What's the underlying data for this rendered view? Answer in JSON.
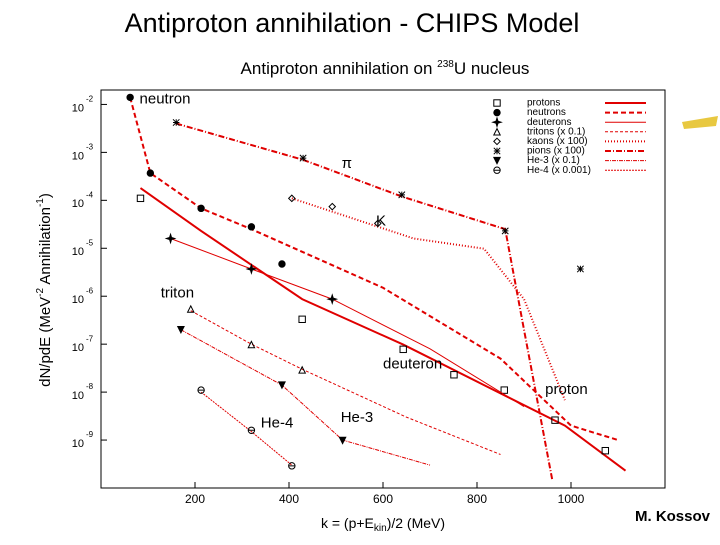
{
  "slide_title": "Antiproton annihilation - CHIPS Model",
  "author": "M. Kossov",
  "chart_data": {
    "type": "scatter",
    "title": {
      "prefix": "Antiproton annihilation on ",
      "isotope": "238",
      "suffix": "U nucleus"
    },
    "x_label": {
      "prefix": "k = (p+E",
      "sub": "kin",
      "suffix": ")/2 (MeV)"
    },
    "y_label": {
      "a": "dN/pdE (MeV",
      "e1": "-2",
      "b": " Annihilation",
      "e2": "-1",
      "c": ")"
    },
    "log_y": true,
    "xlim": [
      0,
      1200
    ],
    "xticks": [
      200,
      400,
      600,
      800,
      1000
    ],
    "ylim": [
      1e-10,
      0.02
    ],
    "yticks": [
      {
        "value": 0.01,
        "label": "10",
        "exponent": "-2"
      },
      {
        "value": 0.001,
        "label": "10",
        "exponent": "-3"
      },
      {
        "value": 0.0001,
        "label": "10",
        "exponent": "-4"
      },
      {
        "value": 1e-05,
        "label": "10",
        "exponent": "-5"
      },
      {
        "value": 1e-06,
        "label": "10",
        "exponent": "-6"
      },
      {
        "value": 1e-07,
        "label": "10",
        "exponent": "-7"
      },
      {
        "value": 1e-08,
        "label": "10",
        "exponent": "-8"
      },
      {
        "value": 1e-09,
        "label": "10",
        "exponent": "-9"
      }
    ],
    "legend": "upper-right",
    "model_color": "#e00000",
    "series": [
      {
        "name": "protons",
        "color": "#000000",
        "marker": "square",
        "x": [
          84,
          428,
          643,
          751,
          858,
          966,
          1073
        ],
        "values": [
          0.00011,
          3.3e-07,
          7.8e-08,
          2.3e-08,
          1.1e-08,
          2.6e-09,
          6e-10
        ],
        "model": {
          "dash": "none",
          "width": 2,
          "x": [
            84,
            213,
            428,
            643,
            815,
            987,
            1116
          ],
          "values": [
            0.00018,
            2.3e-05,
            8.7e-07,
            9.8e-08,
            1.4e-08,
            2e-09,
            2.3e-10
          ]
        }
      },
      {
        "name": "neutrons",
        "color": "#000000",
        "marker": "circle",
        "x": [
          62,
          105,
          213,
          320,
          385
        ],
        "values": [
          0.014,
          0.00037,
          6.8e-05,
          2.8e-05,
          4.7e-06
        ],
        "model": {
          "dash": "5,3",
          "width": 2,
          "x": [
            62,
            105,
            213,
            320,
            600,
            850,
            1000,
            1100
          ],
          "values": [
            0.014,
            0.00037,
            6.8e-05,
            2.5e-05,
            1.5e-06,
            5e-08,
            2e-09,
            1e-09
          ]
        }
      },
      {
        "name": "deuterons",
        "color": "#000000",
        "marker": "star",
        "x": [
          148,
          320,
          492
        ],
        "values": [
          1.6e-05,
          3.7e-06,
          8.7e-07
        ],
        "model": {
          "dash": "none",
          "width": 1,
          "x": [
            148,
            320,
            492,
            700,
            900
          ],
          "values": [
            1.6e-05,
            3.7e-06,
            8.7e-07,
            8e-08,
            5e-09
          ]
        }
      },
      {
        "name": "tritons (x 0.1)",
        "color": "#000000",
        "marker": "triangle",
        "x": [
          191,
          320,
          428
        ],
        "values": [
          5.4e-07,
          9.8e-08,
          2.9e-08
        ],
        "model": {
          "dash": "3,2",
          "width": 1,
          "x": [
            191,
            320,
            428,
            650,
            850
          ],
          "values": [
            5e-07,
            1e-07,
            3e-08,
            3e-09,
            5e-10
          ]
        }
      },
      {
        "name": "kaons (x 100)",
        "color": "#000000",
        "marker": "diamond",
        "x": [
          406,
          492,
          589
        ],
        "values": [
          0.00011,
          7.4e-05,
          3.3e-05
        ],
        "model": {
          "dash": "1,2",
          "width": 2,
          "x": [
            406,
            600,
            665,
            815,
            900,
            987
          ],
          "values": [
            0.00011,
            2.6e-05,
            1.6e-05,
            9.8e-06,
            8.7e-07,
            6.8e-09
          ]
        }
      },
      {
        "name": "pions (x 100)",
        "color": "#000000",
        "marker": "asterisk",
        "x": [
          160,
          430,
          640,
          860,
          1020
        ],
        "values": [
          0.0042,
          0.00076,
          0.00013,
          2.3e-05,
          3.7e-06
        ],
        "model": {
          "dash": "6,2,1,2",
          "width": 2,
          "x": [
            160,
            430,
            640,
            860,
            900,
            960
          ],
          "values": [
            0.004,
            0.0007,
            0.00012,
            2.5e-05,
            2e-07,
            1.5e-10
          ]
        }
      },
      {
        "name": "He-3 (x 0.1)",
        "color": "#000000",
        "marker": "triangle-down",
        "x": [
          170,
          385,
          514
        ],
        "values": [
          2e-07,
          1.4e-08,
          9.8e-10
        ],
        "model": {
          "dash": "4,1,1,1",
          "width": 1,
          "x": [
            170,
            385,
            514,
            700
          ],
          "values": [
            2e-07,
            1.4e-08,
            1e-09,
            3e-10
          ]
        }
      },
      {
        "name": "He-4 (x 0.001)",
        "color": "#000000",
        "marker": "circle-cross",
        "x": [
          213,
          320,
          406
        ],
        "values": [
          1.1e-08,
          1.6e-09,
          2.9e-10
        ],
        "model": {
          "dash": "2,1",
          "width": 1,
          "x": [
            213,
            320,
            406
          ],
          "values": [
            1e-08,
            1.5e-09,
            3e-10
          ]
        }
      }
    ],
    "annotations": [
      {
        "text": "neutron",
        "x": 82,
        "y": 0.0127
      },
      {
        "text": "π",
        "x": 512,
        "y": 0.000575
      },
      {
        "text": "K",
        "x": 585,
        "y": 3.6e-05
      },
      {
        "text": "triton",
        "x": 127,
        "y": 1.15e-06
      },
      {
        "text": "deuteron",
        "x": 600,
        "y": 3.8e-08
      },
      {
        "text": "proton",
        "x": 945,
        "y": 1.1e-08
      },
      {
        "text": "He-4",
        "x": 340,
        "y": 2.2e-09
      },
      {
        "text": "He-3",
        "x": 510,
        "y": 2.9e-09
      }
    ]
  }
}
